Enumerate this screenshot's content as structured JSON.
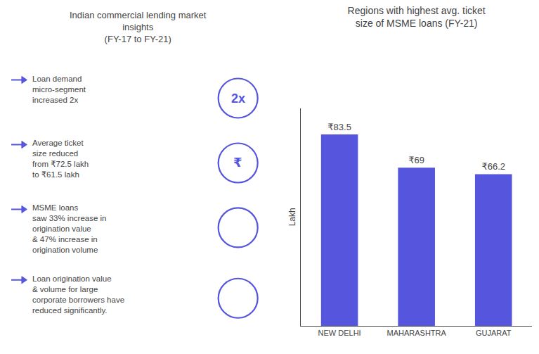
{
  "chart_data": {
    "type": "bar",
    "title": "Regions with highest avg. ticket\nsize of MSME loans (FY-21)",
    "categories": [
      "NEW DELHI",
      "MAHARASHTRA",
      "GUJARAT"
    ],
    "values": [
      83.5,
      69,
      66.2
    ],
    "value_labels": [
      "₹83.5",
      "₹69",
      "₹66.2"
    ],
    "data_labels": true,
    "color": "#5555dd",
    "ylabel": "Lakh",
    "ylim": [
      0,
      95
    ],
    "yticks": [],
    "grid": false,
    "tick_labels": "x",
    "annotations": [
      "Indian commercial lending market\ninsights\n(FY-17 to FY-21)",
      "Loan demand\nmicro-segment\nincreased 2x",
      "2x",
      "Average ticket\nsize reduced\nfrom ₹72.5 lakh\nto ₹61.5 lakh",
      "₹",
      "MSME loans\nsaw 33% increase in\norigination value\n& 47% increase in\norigination volume",
      "Loan origination value\n& volume for large\ncorporate borrowers have\nreduced significantly."
    ]
  }
}
